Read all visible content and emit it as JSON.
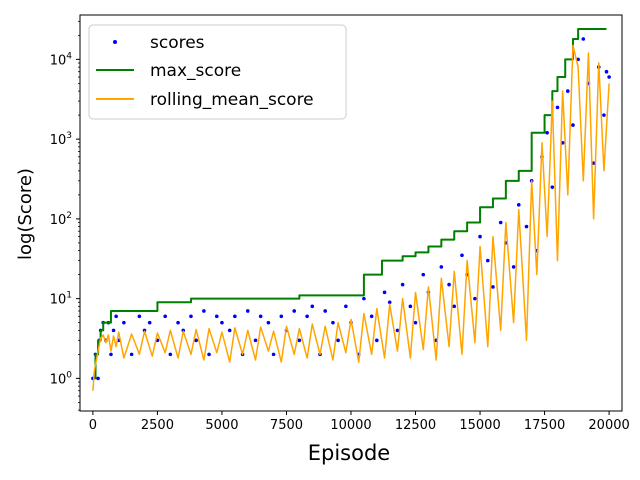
{
  "chart_data": {
    "type": "line",
    "xlabel": "Episode",
    "ylabel": "log(Score)",
    "xlim": [
      -500,
      20500
    ],
    "ylim": [
      0.39,
      36000
    ],
    "yscale": "log",
    "grid": false,
    "legend_position": "top-left",
    "x_ticks": [
      0,
      2500,
      5000,
      7500,
      10000,
      12500,
      15000,
      17500,
      20000
    ],
    "x_tick_labels": [
      "0",
      "2500",
      "5000",
      "7500",
      "10000",
      "12500",
      "15000",
      "17500",
      "20000"
    ],
    "y_ticks": [
      1,
      10,
      100,
      1000,
      10000
    ],
    "y_tick_labels": [
      {
        "base": "10",
        "exp": "0"
      },
      {
        "base": "10",
        "exp": "1"
      },
      {
        "base": "10",
        "exp": "2"
      },
      {
        "base": "10",
        "exp": "3"
      },
      {
        "base": "10",
        "exp": "4"
      }
    ],
    "series": [
      {
        "name": "scores",
        "style": "scatter",
        "color": "#0000ff",
        "x": [
          0,
          100,
          200,
          250,
          300,
          400,
          500,
          600,
          700,
          800,
          900,
          1000,
          1200,
          1500,
          1800,
          2000,
          2200,
          2500,
          2800,
          3000,
          3300,
          3500,
          3800,
          4000,
          4300,
          4500,
          4800,
          5000,
          5300,
          5500,
          5800,
          6000,
          6300,
          6500,
          6800,
          7000,
          7300,
          7500,
          7800,
          8000,
          8300,
          8500,
          8800,
          9000,
          9300,
          9500,
          9800,
          10000,
          10300,
          10500,
          10800,
          11000,
          11300,
          11500,
          11800,
          12000,
          12300,
          12500,
          12800,
          13000,
          13300,
          13500,
          13800,
          14000,
          14300,
          14500,
          14800,
          15000,
          15300,
          15500,
          15800,
          16000,
          16300,
          16500,
          16800,
          17000,
          17200,
          17400,
          17600,
          17800,
          18000,
          18200,
          18400,
          18600,
          18800,
          19000,
          19200,
          19400,
          19600,
          19800,
          19900,
          20000
        ],
        "values": [
          1,
          2,
          1,
          3,
          4,
          5,
          3,
          5,
          2,
          4,
          6,
          3,
          5,
          2,
          6,
          4,
          5,
          3,
          6,
          2,
          5,
          4,
          6,
          3,
          7,
          2,
          6,
          5,
          4,
          6,
          2,
          7,
          3,
          6,
          5,
          2,
          6,
          4,
          7,
          3,
          6,
          8,
          2,
          7,
          5,
          3,
          8,
          5,
          2,
          10,
          6,
          3,
          12,
          9,
          4,
          15,
          8,
          5,
          20,
          12,
          3,
          25,
          15,
          8,
          35,
          20,
          10,
          60,
          30,
          14,
          90,
          50,
          25,
          150,
          80,
          300,
          40,
          600,
          1200,
          250,
          2500,
          900,
          4000,
          1500,
          10000,
          18000,
          5000,
          500,
          8000,
          2000,
          7000,
          6000
        ]
      },
      {
        "name": "max_score",
        "style": "line",
        "color": "#008000",
        "x": [
          0,
          100,
          200,
          300,
          400,
          700,
          1200,
          1800,
          2500,
          3800,
          5000,
          6200,
          7500,
          8000,
          9000,
          10000,
          10500,
          11000,
          11200,
          11500,
          12000,
          12500,
          13000,
          13500,
          14000,
          14500,
          15000,
          15500,
          16000,
          16500,
          17000,
          17500,
          17800,
          18000,
          18300,
          18600,
          18800,
          19000,
          19900
        ],
        "values": [
          1,
          2,
          3,
          4,
          5,
          7,
          7,
          7,
          9,
          10,
          10,
          10,
          10,
          11,
          11,
          11,
          20,
          20,
          30,
          30,
          34,
          38,
          45,
          55,
          70,
          90,
          140,
          180,
          300,
          400,
          1200,
          2000,
          4000,
          6000,
          10000,
          18000,
          24000,
          24000,
          24000
        ]
      },
      {
        "name": "rolling_mean_score",
        "style": "line",
        "color": "#ffa500",
        "x": [
          0,
          50,
          100,
          200,
          300,
          400,
          500,
          600,
          700,
          800,
          900,
          1000,
          1200,
          1500,
          1800,
          2000,
          2300,
          2500,
          2800,
          3000,
          3300,
          3500,
          3800,
          4000,
          4300,
          4500,
          4800,
          5000,
          5300,
          5500,
          5800,
          6000,
          6300,
          6500,
          6800,
          7000,
          7300,
          7500,
          7800,
          8000,
          8300,
          8500,
          8800,
          9000,
          9300,
          9500,
          9800,
          10000,
          10300,
          10500,
          10800,
          11000,
          11300,
          11500,
          11800,
          12000,
          12300,
          12500,
          12800,
          13000,
          13300,
          13500,
          13800,
          14000,
          14300,
          14500,
          14800,
          15000,
          15300,
          15500,
          15800,
          16000,
          16300,
          16500,
          16800,
          17000,
          17200,
          17400,
          17600,
          17800,
          18000,
          18200,
          18400,
          18600,
          18800,
          19000,
          19200,
          19400,
          19600,
          19800,
          20000
        ],
        "values": [
          0.7,
          1.2,
          1.5,
          2.2,
          3.2,
          3.5,
          2.8,
          3.5,
          2.2,
          3.4,
          2.5,
          3.8,
          1.8,
          3.6,
          2.0,
          3.9,
          1.9,
          3.7,
          2.1,
          4.0,
          1.8,
          3.9,
          2.0,
          4.1,
          1.7,
          4.2,
          2.1,
          3.8,
          1.6,
          4.3,
          2.0,
          4.0,
          1.7,
          4.4,
          2.2,
          3.9,
          1.6,
          4.5,
          2.0,
          4.2,
          1.8,
          4.8,
          2.0,
          4.5,
          1.7,
          5.0,
          2.1,
          5.5,
          1.6,
          6.5,
          2.0,
          7.5,
          1.8,
          8.5,
          2.2,
          10,
          1.8,
          12,
          2.3,
          14,
          1.7,
          18,
          2.5,
          22,
          2.0,
          30,
          2.8,
          45,
          2.5,
          60,
          4,
          90,
          5,
          130,
          3,
          300,
          20,
          900,
          60,
          3000,
          30,
          4000,
          200,
          15000,
          8000,
          300,
          12000,
          100,
          9000,
          400,
          5000
        ]
      }
    ]
  }
}
